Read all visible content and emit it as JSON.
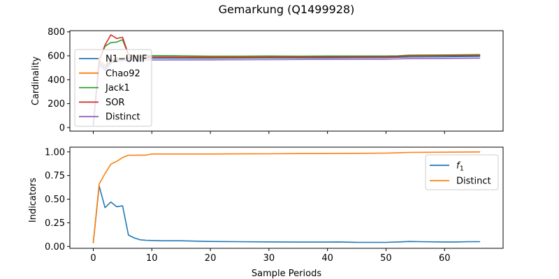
{
  "figure": {
    "title": "Gemarkung (Q1499928)"
  },
  "chart_data": [
    {
      "type": "line",
      "ylabel": "Cardinality",
      "xlabel": "",
      "xlim": [
        -4,
        70
      ],
      "ylim": [
        -30,
        810
      ],
      "yticks": [
        0,
        200,
        400,
        600,
        800
      ],
      "ytick_labels": [
        "0",
        "200",
        "400",
        "600",
        "800"
      ],
      "xticks": [
        0,
        10,
        20,
        30,
        40,
        50,
        60
      ],
      "xtick_labels": [
        "",
        "",
        "",
        "",
        "",
        "",
        ""
      ],
      "legend": {
        "placement": "center-left"
      },
      "series": [
        {
          "name": "N1−UNIF",
          "color": "#1f77b4",
          "points": [
            [
              0,
              20
            ],
            [
              1,
              540
            ],
            [
              2,
              500
            ],
            [
              3,
              555
            ],
            [
              4,
              570
            ],
            [
              5,
              575
            ],
            [
              6,
              578
            ],
            [
              7,
              580
            ],
            [
              10,
              580
            ],
            [
              20,
              580
            ],
            [
              30,
              582
            ],
            [
              40,
              583
            ],
            [
              50,
              585
            ],
            [
              54,
              590
            ],
            [
              60,
              592
            ],
            [
              66,
              595
            ]
          ]
        },
        {
          "name": "Chao92",
          "color": "#ff7f0e",
          "points": [
            [
              0,
              20
            ],
            [
              1,
              560
            ],
            [
              2,
              520
            ],
            [
              3,
              560
            ],
            [
              4,
              580
            ],
            [
              5,
              585
            ],
            [
              6,
              588
            ],
            [
              7,
              590
            ],
            [
              10,
              590
            ],
            [
              20,
              590
            ],
            [
              30,
              592
            ],
            [
              40,
              593
            ],
            [
              50,
              595
            ],
            [
              54,
              600
            ],
            [
              60,
              602
            ],
            [
              66,
              604
            ]
          ]
        },
        {
          "name": "Jack1",
          "color": "#2ca02c",
          "points": [
            [
              0,
              20
            ],
            [
              1,
              560
            ],
            [
              2,
              680
            ],
            [
              3,
              710
            ],
            [
              4,
              715
            ],
            [
              5,
              735
            ],
            [
              6,
              610
            ],
            [
              7,
              600
            ],
            [
              10,
              602
            ],
            [
              15,
              600
            ],
            [
              20,
              597
            ],
            [
              25,
              597
            ],
            [
              30,
              598
            ],
            [
              35,
              597
            ],
            [
              40,
              598
            ],
            [
              45,
              598
            ],
            [
              50,
              598
            ],
            [
              52,
              600
            ],
            [
              54,
              605
            ],
            [
              60,
              607
            ],
            [
              66,
              610
            ]
          ]
        },
        {
          "name": "SOR",
          "color": "#d62728",
          "points": [
            [
              0,
              20
            ],
            [
              1,
              560
            ],
            [
              2,
              690
            ],
            [
              3,
              775
            ],
            [
              4,
              745
            ],
            [
              5,
              755
            ],
            [
              6,
              610
            ],
            [
              7,
              595
            ],
            [
              10,
              590
            ],
            [
              15,
              588
            ],
            [
              20,
              586
            ],
            [
              25,
              586
            ],
            [
              30,
              588
            ],
            [
              35,
              588
            ],
            [
              40,
              590
            ],
            [
              45,
              590
            ],
            [
              50,
              592
            ],
            [
              52,
              595
            ],
            [
              54,
              600
            ],
            [
              60,
              602
            ],
            [
              66,
              603
            ]
          ]
        },
        {
          "name": "Distinct",
          "color": "#9467bd",
          "points": [
            [
              0,
              20
            ],
            [
              1,
              520
            ],
            [
              2,
              480
            ],
            [
              3,
              540
            ],
            [
              4,
              555
            ],
            [
              5,
              560
            ],
            [
              6,
              563
            ],
            [
              7,
              565
            ],
            [
              10,
              565
            ],
            [
              20,
              566
            ],
            [
              30,
              568
            ],
            [
              40,
              570
            ],
            [
              50,
              572
            ],
            [
              54,
              576
            ],
            [
              60,
              578
            ],
            [
              66,
              580
            ]
          ]
        }
      ]
    },
    {
      "type": "line",
      "ylabel": "Indicators",
      "xlabel": "Sample Periods",
      "xlim": [
        -4,
        70
      ],
      "ylim": [
        -0.02,
        1.05
      ],
      "yticks": [
        0,
        0.25,
        0.5,
        0.75,
        1.0
      ],
      "ytick_labels": [
        "0.00",
        "0.25",
        "0.50",
        "0.75",
        "1.00"
      ],
      "xticks": [
        0,
        10,
        20,
        30,
        40,
        50,
        60
      ],
      "xtick_labels": [
        "0",
        "10",
        "20",
        "30",
        "40",
        "50",
        "60"
      ],
      "legend": {
        "placement": "top-right"
      },
      "series": [
        {
          "name": "f1",
          "color": "#1f77b4",
          "points": [
            [
              0,
              0.04
            ],
            [
              1,
              0.64
            ],
            [
              2,
              0.41
            ],
            [
              3,
              0.47
            ],
            [
              4,
              0.42
            ],
            [
              5,
              0.43
            ],
            [
              6,
              0.12
            ],
            [
              7,
              0.09
            ],
            [
              8,
              0.07
            ],
            [
              9,
              0.065
            ],
            [
              10,
              0.063
            ],
            [
              12,
              0.06
            ],
            [
              15,
              0.06
            ],
            [
              18,
              0.055
            ],
            [
              20,
              0.052
            ],
            [
              25,
              0.05
            ],
            [
              30,
              0.048
            ],
            [
              35,
              0.046
            ],
            [
              40,
              0.046
            ],
            [
              42,
              0.047
            ],
            [
              45,
              0.043
            ],
            [
              50,
              0.043
            ],
            [
              52,
              0.047
            ],
            [
              54,
              0.052
            ],
            [
              56,
              0.05
            ],
            [
              60,
              0.047
            ],
            [
              62,
              0.047
            ],
            [
              64,
              0.05
            ],
            [
              66,
              0.05
            ]
          ]
        },
        {
          "name": "Distinct",
          "color": "#ff7f0e",
          "points": [
            [
              0,
              0.04
            ],
            [
              1,
              0.66
            ],
            [
              2,
              0.77
            ],
            [
              3,
              0.87
            ],
            [
              4,
              0.9
            ],
            [
              5,
              0.94
            ],
            [
              6,
              0.965
            ],
            [
              7,
              0.965
            ],
            [
              8,
              0.966
            ],
            [
              9,
              0.966
            ],
            [
              10,
              0.978
            ],
            [
              15,
              0.978
            ],
            [
              20,
              0.978
            ],
            [
              25,
              0.979
            ],
            [
              30,
              0.98
            ],
            [
              35,
              0.982
            ],
            [
              40,
              0.983
            ],
            [
              45,
              0.985
            ],
            [
              50,
              0.987
            ],
            [
              52,
              0.99
            ],
            [
              54,
              0.995
            ],
            [
              60,
              0.997
            ],
            [
              66,
              1.0
            ]
          ]
        }
      ]
    }
  ]
}
